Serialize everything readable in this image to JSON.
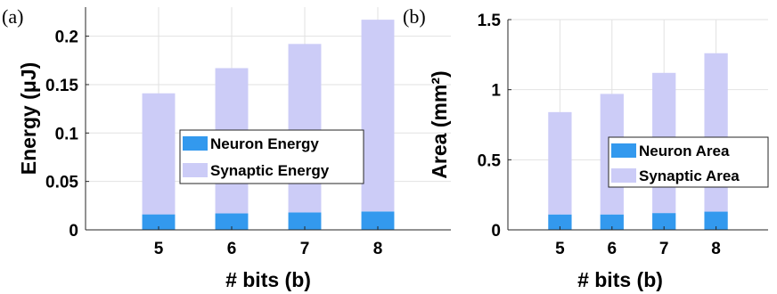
{
  "chart_data": [
    {
      "panel_label": "(a)",
      "type": "bar",
      "stacked": true,
      "categories": [
        "5",
        "6",
        "7",
        "8"
      ],
      "series": [
        {
          "name": "Neuron Energy",
          "values": [
            0.016,
            0.017,
            0.018,
            0.019
          ],
          "color": "#3399ee"
        },
        {
          "name": "Synaptic Energy",
          "values": [
            0.125,
            0.15,
            0.174,
            0.198
          ],
          "color": "#ccccf7"
        }
      ],
      "xlabel": "# bits (b)",
      "ylabel": "Energy (μJ)",
      "ylim": [
        0,
        0.23
      ],
      "yticks": [
        "0",
        "0.05",
        "0.1",
        "0.15",
        "0.2"
      ],
      "ytick_values": [
        0,
        0.05,
        0.1,
        0.15,
        0.2
      ],
      "legend_position": "center-right",
      "grid": true
    },
    {
      "panel_label": "(b)",
      "type": "bar",
      "stacked": true,
      "categories": [
        "5",
        "6",
        "7",
        "8"
      ],
      "series": [
        {
          "name": "Neuron Area",
          "values": [
            0.11,
            0.11,
            0.12,
            0.13
          ],
          "color": "#3399ee"
        },
        {
          "name": "Synaptic Area",
          "values": [
            0.73,
            0.86,
            1.0,
            1.13
          ],
          "color": "#ccccf7"
        }
      ],
      "xlabel": "# bits (b)",
      "ylabel": "Area (mm²)",
      "ylim": [
        0,
        1.5
      ],
      "yticks": [
        "0",
        "0.5",
        "1",
        "1.5"
      ],
      "ytick_values": [
        0,
        0.5,
        1,
        1.5
      ],
      "legend_position": "center-right",
      "grid": true
    }
  ]
}
